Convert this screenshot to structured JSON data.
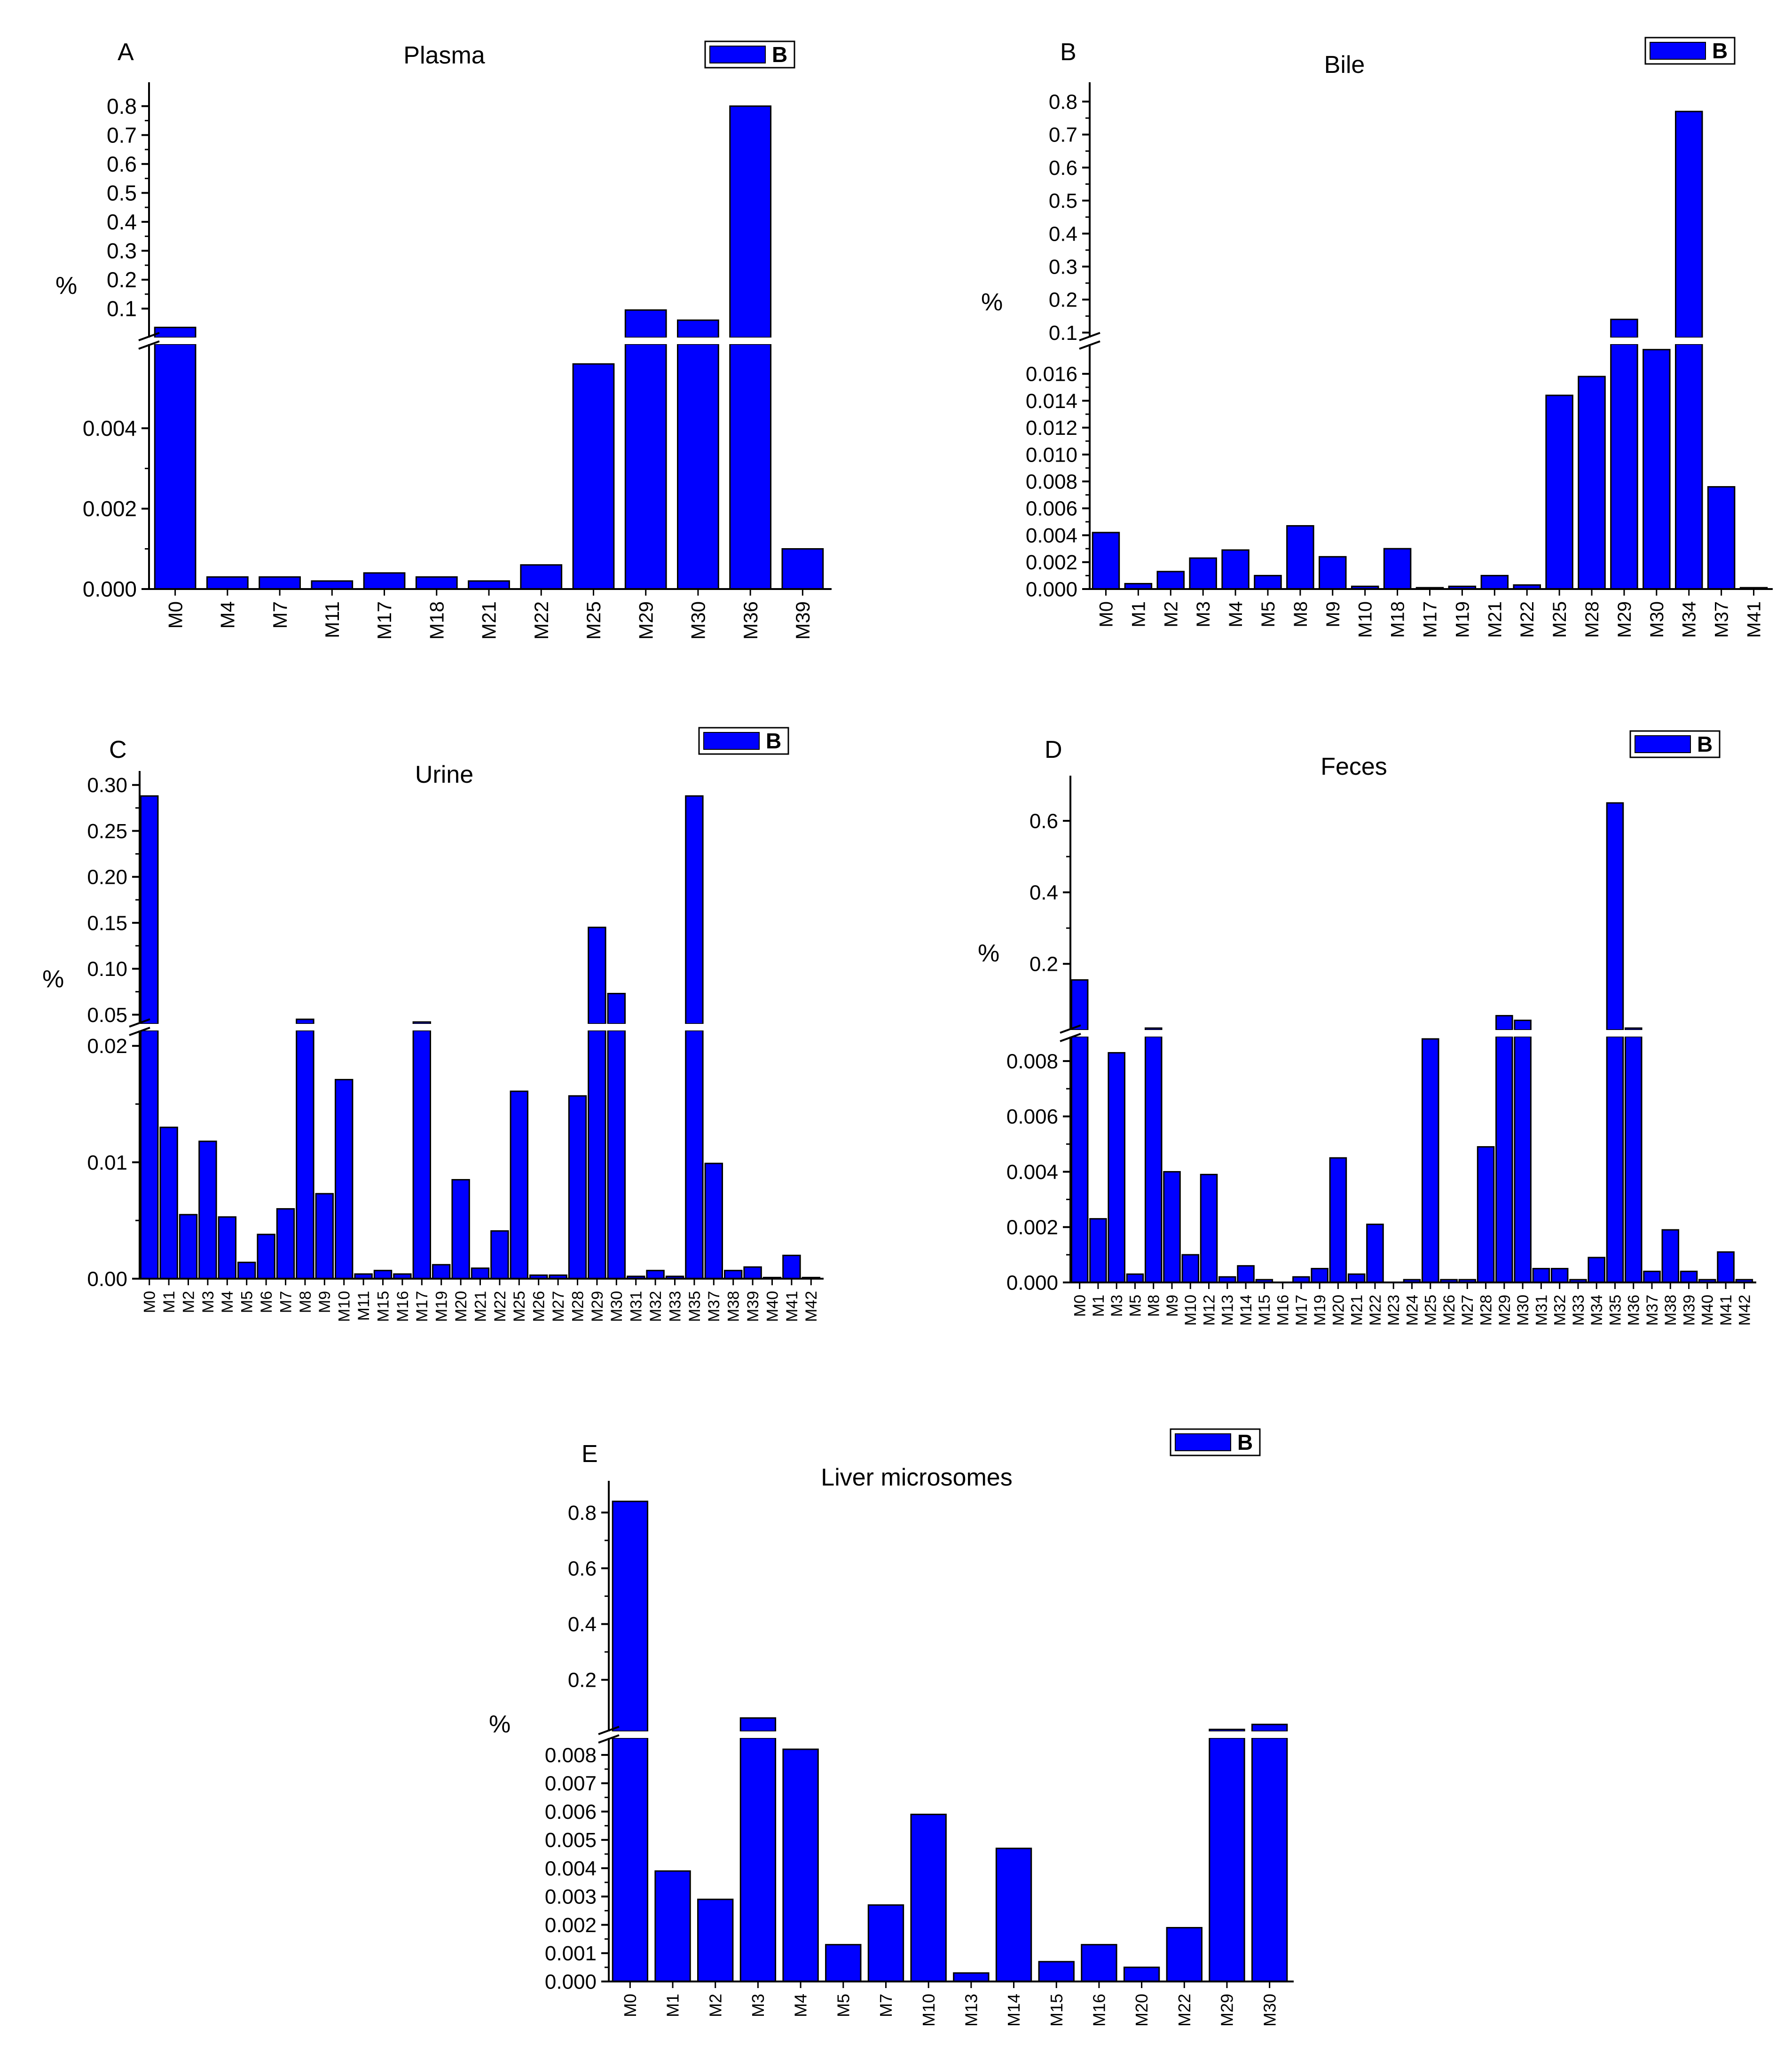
{
  "panel_colors": {
    "bar": "#0000ff",
    "bar_edge": "#000000",
    "axis": "#000000",
    "break_gap": "#ffffff"
  },
  "chart_data": [
    {
      "id": "A",
      "letter": "A",
      "title": "Plasma",
      "type": "bar",
      "ylabel": "%",
      "legend": "B",
      "categories": [
        "M0",
        "M4",
        "M7",
        "M11",
        "M17",
        "M18",
        "M21",
        "M22",
        "M25",
        "M29",
        "M30",
        "M36",
        "M39"
      ],
      "values": [
        0.035,
        0.0003,
        0.0003,
        0.0002,
        0.0004,
        0.0003,
        0.0002,
        0.0006,
        0.0056,
        0.095,
        0.06,
        0.8,
        0.001
      ],
      "lower": {
        "range": [
          0,
          0.006
        ],
        "ticks": [
          0,
          0.002,
          0.004
        ],
        "tick_labels": [
          "0.000",
          "0.002",
          "0.004"
        ]
      },
      "upper": {
        "range": [
          0,
          0.85
        ],
        "ticks": [
          0.1,
          0.2,
          0.3,
          0.4,
          0.5,
          0.6,
          0.7,
          0.8
        ],
        "tick_labels": [
          "0.1",
          "0.2",
          "0.3",
          "0.4",
          "0.5",
          "0.6",
          "0.7",
          "0.8"
        ]
      }
    },
    {
      "id": "B",
      "letter": "B",
      "title": "Bile",
      "type": "bar",
      "ylabel": "%",
      "legend": "B",
      "categories": [
        "M0",
        "M1",
        "M2",
        "M3",
        "M4",
        "M5",
        "M8",
        "M9",
        "M10",
        "M18",
        "M17",
        "M19",
        "M21",
        "M22",
        "M25",
        "M28",
        "M29",
        "M30",
        "M34",
        "M37",
        "M41"
      ],
      "values": [
        0.0042,
        0.0004,
        0.0013,
        0.0023,
        0.0029,
        0.001,
        0.0047,
        0.0024,
        0.0002,
        0.003,
        0.0001,
        0.0002,
        0.001,
        0.0003,
        0.0144,
        0.0158,
        0.14,
        0.0178,
        0.77,
        0.0076,
        0.0001
      ],
      "lower": {
        "range": [
          0,
          0.018
        ],
        "ticks": [
          0,
          0.002,
          0.004,
          0.006,
          0.008,
          0.01,
          0.012,
          0.014,
          0.016
        ],
        "tick_labels": [
          "0.000",
          "0.002",
          "0.004",
          "0.006",
          "0.008",
          "0.010",
          "0.012",
          "0.014",
          "0.016"
        ]
      },
      "upper": {
        "range": [
          0.085,
          0.83
        ],
        "ticks": [
          0.1,
          0.2,
          0.3,
          0.4,
          0.5,
          0.6,
          0.7,
          0.8
        ],
        "tick_labels": [
          "0.1",
          "0.2",
          "0.3",
          "0.4",
          "0.5",
          "0.6",
          "0.7",
          "0.8"
        ]
      }
    },
    {
      "id": "C",
      "letter": "C",
      "title": "Urine",
      "type": "bar",
      "ylabel": "%",
      "legend": "B",
      "categories": [
        "M0",
        "M1",
        "M2",
        "M3",
        "M4",
        "M5",
        "M6",
        "M7",
        "M8",
        "M9",
        "M10",
        "M11",
        "M15",
        "M16",
        "M17",
        "M19",
        "M20",
        "M21",
        "M22",
        "M25",
        "M26",
        "M27",
        "M28",
        "M29",
        "M30",
        "M31",
        "M32",
        "M33",
        "M35",
        "M37",
        "M38",
        "M39",
        "M40",
        "M41",
        "M42"
      ],
      "values": [
        0.288,
        0.013,
        0.0055,
        0.0118,
        0.0053,
        0.0014,
        0.0038,
        0.006,
        0.045,
        0.0073,
        0.0171,
        0.0004,
        0.0007,
        0.0004,
        0.0211,
        0.0012,
        0.0085,
        0.0009,
        0.0041,
        0.0161,
        0.0003,
        0.0003,
        0.0157,
        0.145,
        0.073,
        0.0002,
        0.0007,
        0.0002,
        0.288,
        0.0099,
        0.0007,
        0.001,
        0.0001,
        0.002,
        0.0001
      ],
      "lower": {
        "range": [
          0,
          0.021
        ],
        "ticks": [
          0,
          0.01,
          0.02
        ],
        "tick_labels": [
          "0.00",
          "0.01",
          "0.02"
        ]
      },
      "upper": {
        "range": [
          0.04,
          0.305
        ],
        "ticks": [
          0.05,
          0.1,
          0.15,
          0.2,
          0.25,
          0.3
        ],
        "tick_labels": [
          "0.05",
          "0.10",
          "0.15",
          "0.20",
          "0.25",
          "0.30"
        ]
      }
    },
    {
      "id": "D",
      "letter": "D",
      "title": "Feces",
      "type": "bar",
      "ylabel": "%",
      "legend": "B",
      "categories": [
        "M0",
        "M1",
        "M3",
        "M5",
        "M8",
        "M9",
        "M10",
        "M12",
        "M13",
        "M14",
        "M15",
        "M16",
        "M17",
        "M19",
        "M20",
        "M21",
        "M22",
        "M23",
        "M24",
        "M25",
        "M26",
        "M27",
        "M28",
        "M29",
        "M30",
        "M31",
        "M32",
        "M33",
        "M34",
        "M35",
        "M36",
        "M37",
        "M38",
        "M39",
        "M40",
        "M41",
        "M42"
      ],
      "values": [
        0.155,
        0.0023,
        0.0083,
        0.0003,
        0.02,
        0.004,
        0.001,
        0.0039,
        0.0002,
        0.0006,
        0.0001,
        0.0,
        0.0002,
        0.0005,
        0.0045,
        0.0003,
        0.0021,
        0.0,
        0.0001,
        0.0088,
        0.0001,
        0.0001,
        0.0049,
        0.055,
        0.042,
        0.0005,
        0.0005,
        0.0001,
        0.0009,
        0.65,
        0.01,
        0.0004,
        0.0019,
        0.0004,
        0.0001,
        0.0011,
        0.0001
      ],
      "lower": {
        "range": [
          0,
          0.0088
        ],
        "ticks": [
          0,
          0.002,
          0.004,
          0.006,
          0.008
        ],
        "tick_labels": [
          "0.000",
          "0.002",
          "0.004",
          "0.006",
          "0.008"
        ]
      },
      "upper": {
        "range": [
          0.015,
          0.7
        ],
        "ticks": [
          0.2,
          0.4,
          0.6
        ],
        "tick_labels": [
          "0.2",
          "0.4",
          "0.6"
        ]
      }
    },
    {
      "id": "E",
      "letter": "E",
      "title": "Liver microsomes",
      "type": "bar",
      "ylabel": "%",
      "legend": "B",
      "categories": [
        "M0",
        "M1",
        "M2",
        "M3",
        "M4",
        "M5",
        "M7",
        "M10",
        "M13",
        "M14",
        "M15",
        "M16",
        "M20",
        "M22",
        "M29",
        "M30"
      ],
      "values": [
        0.84,
        0.0039,
        0.0029,
        0.063,
        0.0082,
        0.0013,
        0.0027,
        0.0059,
        0.0003,
        0.0047,
        0.0007,
        0.0013,
        0.0005,
        0.0019,
        0.022,
        0.04
      ],
      "lower": {
        "range": [
          0,
          0.0083
        ],
        "ticks": [
          0,
          0.001,
          0.002,
          0.003,
          0.004,
          0.005,
          0.006,
          0.007,
          0.008
        ],
        "tick_labels": [
          "0.000",
          "0.001",
          "0.002",
          "0.003",
          "0.004",
          "0.005",
          "0.006",
          "0.007",
          "0.008"
        ]
      },
      "upper": {
        "range": [
          0.015,
          0.88
        ],
        "ticks": [
          0.2,
          0.4,
          0.6,
          0.8
        ],
        "tick_labels": [
          "0.2",
          "0.4",
          "0.6",
          "0.8"
        ]
      }
    }
  ]
}
